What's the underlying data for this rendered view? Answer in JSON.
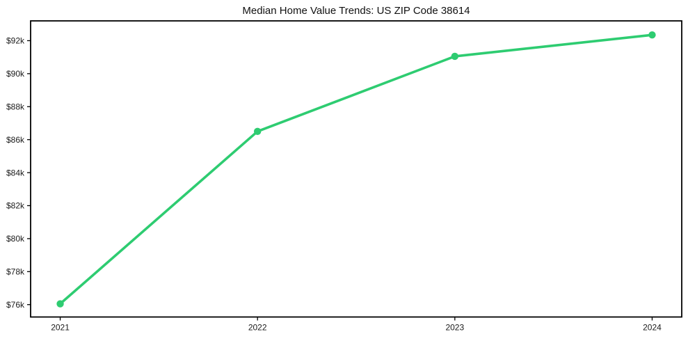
{
  "chart_data": {
    "type": "line",
    "title": "Median Home Value Trends: US ZIP Code 38614",
    "x": [
      2021,
      2022,
      2023,
      2024
    ],
    "x_tick_labels": [
      "2021",
      "2022",
      "2023",
      "2024"
    ],
    "values": [
      76050,
      86500,
      91050,
      92350
    ],
    "y_ticks": [
      76000,
      78000,
      80000,
      82000,
      84000,
      86000,
      88000,
      90000,
      92000
    ],
    "y_tick_labels": [
      "$76k",
      "$78k",
      "$80k",
      "$82k",
      "$84k",
      "$86k",
      "$88k",
      "$90k",
      "$92k"
    ],
    "xlim": [
      2020.85,
      2024.15
    ],
    "ylim": [
      75250,
      93200
    ],
    "xlabel": "",
    "ylabel": "",
    "grid": false,
    "legend": "none",
    "line_color": "#2ecc71",
    "marker": "circle",
    "marker_color": "#2ecc71",
    "axis_color": "#000000",
    "background_color": "#ffffff"
  }
}
